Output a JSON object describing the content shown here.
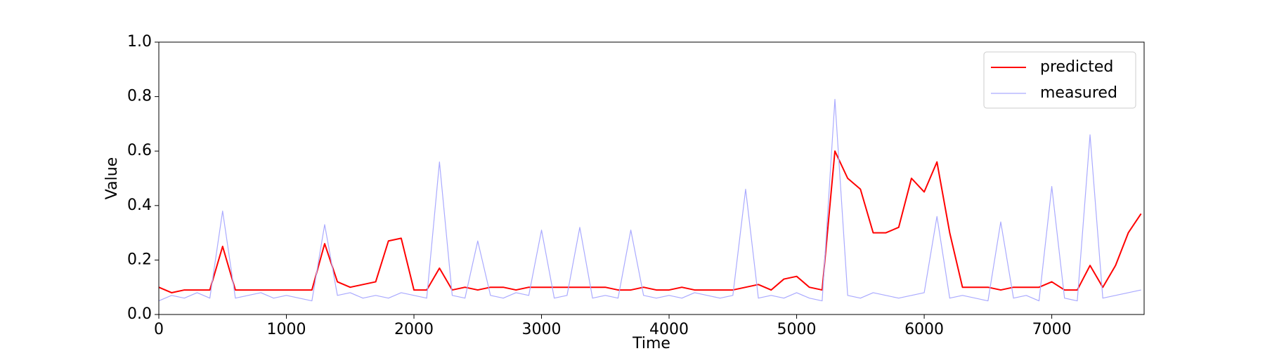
{
  "chart_data": {
    "type": "line",
    "xlabel": "Time",
    "ylabel": "Value",
    "x": [
      0,
      100,
      200,
      300,
      400,
      500,
      600,
      700,
      800,
      900,
      1000,
      1100,
      1200,
      1300,
      1400,
      1500,
      1600,
      1700,
      1800,
      1900,
      2000,
      2100,
      2200,
      2300,
      2400,
      2500,
      2600,
      2700,
      2800,
      2900,
      3000,
      3100,
      3200,
      3300,
      3400,
      3500,
      3600,
      3700,
      3800,
      3900,
      4000,
      4100,
      4200,
      4300,
      4400,
      4500,
      4600,
      4700,
      4800,
      4900,
      5000,
      5100,
      5200,
      5300,
      5400,
      5500,
      5600,
      5700,
      5800,
      5900,
      6000,
      6100,
      6200,
      6300,
      6400,
      6500,
      6600,
      6700,
      6800,
      6900,
      7000,
      7100,
      7200,
      7300,
      7400,
      7500,
      7600,
      7700
    ],
    "series": [
      {
        "name": "predicted",
        "color": "#ff0000",
        "values": [
          0.1,
          0.08,
          0.09,
          0.09,
          0.09,
          0.25,
          0.09,
          0.09,
          0.09,
          0.09,
          0.09,
          0.09,
          0.09,
          0.26,
          0.12,
          0.1,
          0.11,
          0.12,
          0.27,
          0.28,
          0.09,
          0.09,
          0.17,
          0.09,
          0.1,
          0.09,
          0.1,
          0.1,
          0.09,
          0.1,
          0.1,
          0.1,
          0.1,
          0.1,
          0.1,
          0.1,
          0.09,
          0.09,
          0.1,
          0.09,
          0.09,
          0.1,
          0.09,
          0.09,
          0.09,
          0.09,
          0.1,
          0.11,
          0.09,
          0.13,
          0.14,
          0.1,
          0.09,
          0.6,
          0.5,
          0.46,
          0.3,
          0.3,
          0.32,
          0.5,
          0.45,
          0.56,
          0.3,
          0.1,
          0.1,
          0.1,
          0.09,
          0.1,
          0.1,
          0.1,
          0.12,
          0.09,
          0.09,
          0.18,
          0.1,
          0.18,
          0.3,
          0.37
        ]
      },
      {
        "name": "measured",
        "color": "#aaaaff",
        "values": [
          0.05,
          0.07,
          0.06,
          0.08,
          0.06,
          0.38,
          0.06,
          0.07,
          0.08,
          0.06,
          0.07,
          0.06,
          0.05,
          0.33,
          0.07,
          0.08,
          0.06,
          0.07,
          0.06,
          0.08,
          0.07,
          0.06,
          0.56,
          0.07,
          0.06,
          0.27,
          0.07,
          0.06,
          0.08,
          0.07,
          0.31,
          0.06,
          0.07,
          0.32,
          0.06,
          0.07,
          0.06,
          0.31,
          0.07,
          0.06,
          0.07,
          0.06,
          0.08,
          0.07,
          0.06,
          0.07,
          0.46,
          0.06,
          0.07,
          0.06,
          0.08,
          0.06,
          0.05,
          0.79,
          0.07,
          0.06,
          0.08,
          0.07,
          0.06,
          0.07,
          0.08,
          0.36,
          0.06,
          0.07,
          0.06,
          0.05,
          0.34,
          0.06,
          0.07,
          0.05,
          0.47,
          0.06,
          0.05,
          0.66,
          0.06,
          0.07,
          0.08,
          0.09
        ]
      }
    ],
    "xlim": [
      0,
      7724
    ],
    "ylim": [
      0,
      1
    ],
    "xticks": [
      0,
      1000,
      2000,
      3000,
      4000,
      5000,
      6000,
      7000
    ],
    "yticks": [
      {
        "value": 0,
        "label": "0.0"
      },
      {
        "value": 0.2,
        "label": "0.2"
      },
      {
        "value": 0.4,
        "label": "0.4"
      },
      {
        "value": 0.6,
        "label": "0.6"
      },
      {
        "value": 0.8,
        "label": "0.8"
      },
      {
        "value": 1,
        "label": "1.0"
      }
    ],
    "legend": "upper right"
  }
}
